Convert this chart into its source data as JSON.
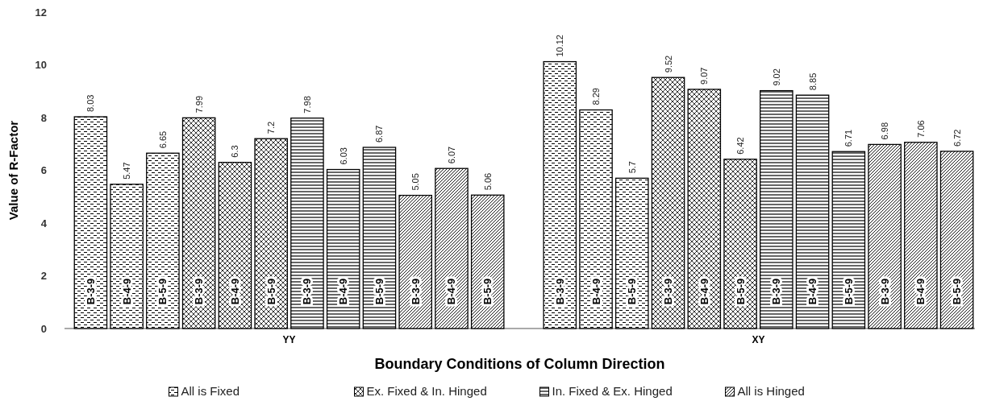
{
  "chart_data": {
    "type": "bar",
    "xlabel": "Boundary Conditions of Column Direction",
    "ylabel": "Value of R-Factor",
    "categories": [
      "B-3-9",
      "B-4-9",
      "B-5-9",
      "B-3-9",
      "B-4-9",
      "B-5-9",
      "B-3-9",
      "B-4-9",
      "B-5-9",
      "B-3-9",
      "B-4-9",
      "B-5-9",
      null,
      "B-3-9",
      "B-4-9",
      "B-5-9",
      "B-3-9",
      "B-4-9",
      "B-5-9",
      "B-3-9",
      "B-4-9",
      "B-5-9",
      "B-3-9",
      "B-4-9",
      "B-5-9"
    ],
    "annotations": [
      "YY",
      "XY"
    ],
    "stacked": true,
    "series": [
      {
        "name": "All is Fixed",
        "color": "#000000",
        "values": [
          8.03,
          5.47,
          6.65,
          null,
          null,
          null,
          null,
          null,
          null,
          null,
          null,
          null,
          null,
          10.12,
          8.29,
          5.7,
          null,
          null,
          null,
          null,
          null,
          null,
          null,
          null,
          null
        ]
      },
      {
        "name": "Ex. Fixed & In. Hinged",
        "color": "#000000",
        "values": [
          null,
          null,
          null,
          7.99,
          6.3,
          7.2,
          null,
          null,
          null,
          null,
          null,
          null,
          null,
          null,
          null,
          null,
          9.52,
          9.07,
          6.42,
          null,
          null,
          null,
          null,
          null,
          null
        ]
      },
      {
        "name": "In. Fixed & Ex. Hinged",
        "color": "#000000",
        "values": [
          null,
          null,
          null,
          null,
          null,
          null,
          7.98,
          6.03,
          6.87,
          null,
          null,
          null,
          null,
          null,
          null,
          null,
          null,
          null,
          null,
          9.02,
          8.85,
          6.71,
          null,
          null,
          null
        ]
      },
      {
        "name": "All is Hinged",
        "color": "#000000",
        "values": [
          null,
          null,
          null,
          null,
          null,
          null,
          null,
          null,
          null,
          5.05,
          6.07,
          5.06,
          null,
          null,
          null,
          null,
          null,
          null,
          null,
          null,
          null,
          null,
          6.98,
          7.06,
          6.72
        ]
      }
    ],
    "ylim": [
      0,
      12
    ],
    "yticks": [
      0,
      2,
      4,
      6,
      8,
      10,
      12
    ],
    "grid": false,
    "legend": "bottom",
    "data_labels": true
  }
}
